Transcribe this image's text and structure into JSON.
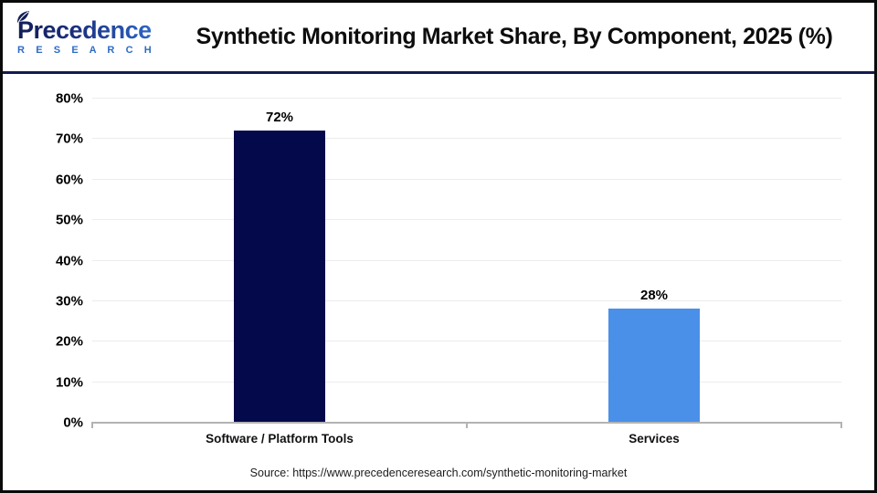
{
  "header": {
    "logo_line1": "Precedence",
    "logo_line2": "R E S E A R C H",
    "title": "Synthetic Monitoring Market Share, By Component, 2025 (%)"
  },
  "chart_data": {
    "type": "bar",
    "title": "Synthetic Monitoring Market Share, By Component, 2025 (%)",
    "categories": [
      "Software / Platform Tools",
      "Services"
    ],
    "values": [
      72,
      28
    ],
    "value_labels": [
      "72%",
      "28%"
    ],
    "bar_colors": [
      "#04094b",
      "#4a90e8"
    ],
    "xlabel": "",
    "ylabel": "",
    "ylim": [
      0,
      80
    ],
    "ytick_step": 10,
    "ytick_labels": [
      "0%",
      "10%",
      "20%",
      "30%",
      "40%",
      "50%",
      "60%",
      "70%",
      "80%"
    ],
    "grid": true,
    "legend": false
  },
  "footer": {
    "source": "Source: https://www.precedenceresearch.com/synthetic-monitoring-market"
  },
  "colors": {
    "separator": "#141b4f",
    "axis": "#b3b3b3",
    "grid": "#ececec",
    "title_text": "#0d0d0d",
    "logo_blue": "#2d6cc3",
    "logo_navy": "#121d57"
  }
}
